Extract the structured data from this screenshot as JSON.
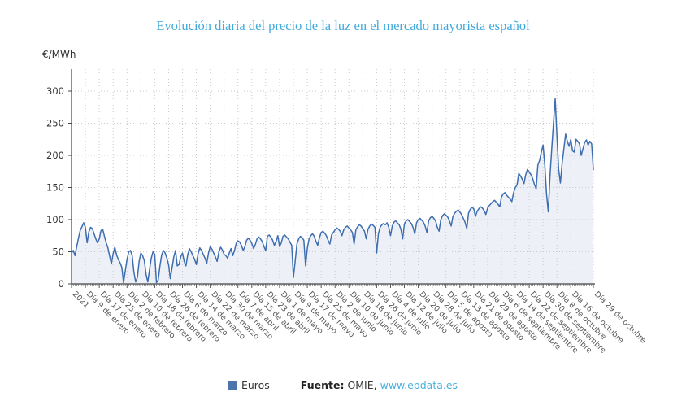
{
  "title": "Evolución diaria del precio de la luz en el mercado mayorista español",
  "y_axis_unit": "€/MWh",
  "legend": {
    "series_label": "Euros"
  },
  "source": {
    "prefix": "Fuente:",
    "name": "OMIE,",
    "link": "www.epdata.es"
  },
  "colors": {
    "title": "#3fa9dc",
    "line": "#3e6db0",
    "area_fill": "#edf1f7",
    "legend_square": "#4d74ac",
    "link": "#4ab0de",
    "grid": "#c9c9c9",
    "axis": "#444444",
    "tick_text": "#555555"
  },
  "chart_data": {
    "type": "area",
    "title": "Evolución diaria del precio de la luz en el mercado mayorista español",
    "ylabel": "€/MWh",
    "ylim": [
      0,
      300
    ],
    "y_ticks": [
      0,
      50,
      100,
      150,
      200,
      250,
      300
    ],
    "grid": true,
    "legend_position": "bottom",
    "series_name": "Euros",
    "start_date": "2021-01-01",
    "end_date": "2021-10-29",
    "x_tick_indices": [
      0,
      8,
      16,
      24,
      32,
      40,
      48,
      56,
      64,
      72,
      80,
      88,
      96,
      104,
      112,
      120,
      128,
      136,
      144,
      152,
      160,
      168,
      176,
      184,
      192,
      200,
      208,
      216,
      224,
      232,
      240,
      248,
      256,
      264,
      272,
      280,
      288,
      301
    ],
    "x_tick_labels": [
      "2021",
      "Día 9 de enero",
      "Día 17 de enero",
      "Día 25 de enero",
      "Día 2 de febrero",
      "Día 10 de febrero",
      "Día 18 de febrero",
      "Día 26 de febrero",
      "Día 6 de marzo",
      "Día 14 de marzo",
      "Día 22 de marzo",
      "Día 30 de marzo",
      "Día 7 de abril",
      "Día 15 de abril",
      "Día 23 de abril",
      "Día 1 de mayo",
      "Día 9 de mayo",
      "Día 17 de mayo",
      "Día 25 de mayo",
      "Día 2 de junio",
      "Día 10 de junio",
      "Día 18 de junio",
      "Día 26 de junio",
      "Día 4 de julio",
      "Día 12 de julio",
      "Día 20 de julio",
      "Día 28 de julio",
      "Día 5 de agosto",
      "Día 13 de agosto",
      "Día 21 de agosto",
      "Día 29 de agosto",
      "Día 6 de septiembre",
      "Día 14 de septiembre",
      "Día 22 de septiembre",
      "Día 30 de septiembre",
      "Día 8 de octubre",
      "Día 16 de octubre",
      "Día 29 de octubre"
    ],
    "values": [
      48,
      52,
      44,
      58,
      71,
      83,
      89,
      95,
      88,
      64,
      81,
      88,
      86,
      78,
      70,
      64,
      70,
      83,
      85,
      74,
      64,
      56,
      43,
      31,
      47,
      57,
      45,
      38,
      33,
      26,
      2,
      20,
      38,
      50,
      52,
      44,
      18,
      3,
      10,
      35,
      48,
      44,
      36,
      15,
      3,
      22,
      40,
      50,
      46,
      2,
      6,
      28,
      45,
      52,
      48,
      40,
      30,
      8,
      25,
      42,
      52,
      28,
      30,
      42,
      48,
      35,
      28,
      45,
      55,
      50,
      44,
      38,
      30,
      47,
      56,
      52,
      46,
      40,
      32,
      48,
      58,
      54,
      48,
      42,
      35,
      50,
      57,
      53,
      46,
      44,
      40,
      48,
      55,
      44,
      52,
      63,
      67,
      65,
      60,
      52,
      58,
      68,
      71,
      68,
      63,
      55,
      61,
      70,
      73,
      70,
      66,
      58,
      52,
      74,
      76,
      73,
      68,
      60,
      66,
      75,
      58,
      64,
      74,
      76,
      73,
      70,
      65,
      60,
      10,
      35,
      62,
      70,
      74,
      72,
      68,
      28,
      55,
      70,
      75,
      78,
      74,
      66,
      60,
      72,
      80,
      82,
      79,
      75,
      68,
      62,
      76,
      80,
      84,
      87,
      85,
      82,
      75,
      84,
      88,
      90,
      87,
      84,
      80,
      62,
      84,
      89,
      92,
      90,
      86,
      82,
      70,
      85,
      90,
      93,
      91,
      88,
      48,
      78,
      88,
      92,
      94,
      92,
      95,
      88,
      75,
      90,
      96,
      98,
      95,
      92,
      85,
      70,
      93,
      98,
      100,
      97,
      94,
      88,
      78,
      95,
      100,
      102,
      99,
      96,
      90,
      80,
      98,
      103,
      105,
      102,
      98,
      88,
      82,
      100,
      106,
      109,
      107,
      104,
      98,
      90,
      105,
      110,
      113,
      115,
      112,
      108,
      102,
      96,
      86,
      110,
      116,
      119,
      117,
      105,
      113,
      117,
      120,
      118,
      114,
      108,
      118,
      122,
      125,
      128,
      130,
      127,
      124,
      120,
      135,
      140,
      142,
      138,
      135,
      132,
      128,
      142,
      150,
      154,
      172,
      168,
      163,
      156,
      170,
      178,
      174,
      170,
      164,
      155,
      148,
      185,
      192,
      205,
      216,
      185,
      140,
      112,
      168,
      210,
      250,
      288,
      230,
      178,
      157,
      188,
      210,
      233,
      222,
      214,
      225,
      207,
      205,
      225,
      222,
      218,
      200,
      210,
      220,
      224,
      216,
      222,
      218,
      178
    ]
  }
}
